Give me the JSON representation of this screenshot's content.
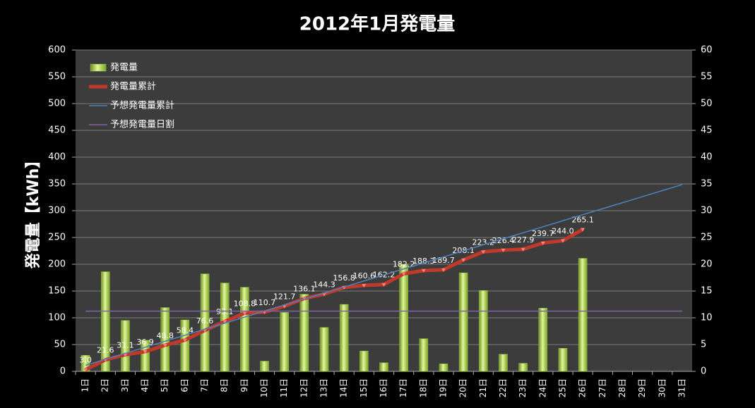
{
  "chart_data": {
    "type": "combo",
    "title": "2012年1月発電量",
    "y_label": "発電量【kWh】",
    "categories": [
      "1日",
      "2日",
      "3日",
      "4日",
      "5日",
      "6日",
      "7日",
      "8日",
      "9日",
      "10日",
      "11日",
      "12日",
      "13日",
      "14日",
      "15日",
      "16日",
      "17日",
      "18日",
      "19日",
      "20日",
      "21日",
      "22日",
      "23日",
      "24日",
      "25日",
      "26日",
      "27日",
      "28日",
      "29日",
      "30日",
      "31日"
    ],
    "series": [
      {
        "name": "発電量",
        "type": "bar",
        "axis": "y2",
        "color": "#9acd32",
        "values": [
          3.0,
          18.6,
          9.5,
          5.8,
          11.9,
          9.6,
          18.2,
          16.5,
          15.7,
          1.9,
          11.0,
          14.4,
          8.2,
          12.5,
          3.8,
          1.6,
          20.0,
          6.1,
          1.4,
          18.4,
          15.1,
          3.2,
          1.5,
          11.8,
          4.3,
          21.1,
          null,
          null,
          null,
          null,
          null
        ]
      },
      {
        "name": "発電量累計",
        "type": "line",
        "color": "#c0392b",
        "values": [
          3.0,
          21.6,
          31.1,
          36.9,
          48.8,
          58.4,
          76.6,
          93.1,
          108.8,
          110.7,
          121.7,
          136.1,
          144.3,
          156.8,
          160.6,
          162.2,
          182.2,
          188.3,
          189.7,
          208.1,
          223.2,
          226.4,
          227.9,
          239.7,
          244.0,
          265.1,
          null,
          null,
          null,
          null,
          null
        ],
        "value_labels": [
          "3.0",
          "21.6",
          "31.1",
          "36.9",
          "48.8",
          "58.4",
          "76.6",
          "93.1",
          "108.8",
          "110.7",
          "121.7",
          "136.1",
          "144.3",
          "156.8",
          "160.6",
          "162.2",
          "182.2",
          "188.3",
          "189.7",
          "208.1",
          "223.2",
          "226.4",
          "227.9",
          "239.7",
          "244.0",
          "265.1",
          null,
          null,
          null,
          null,
          null
        ]
      },
      {
        "name": "予想発電量累計",
        "type": "line",
        "color": "#4f81bd",
        "values": [
          11.25,
          22.5,
          33.75,
          45,
          56.25,
          67.5,
          78.75,
          90,
          101.25,
          112.5,
          123.75,
          135,
          146.25,
          157.5,
          168.75,
          180,
          191.25,
          202.5,
          213.75,
          225,
          236.25,
          247.5,
          258.75,
          270,
          281.25,
          292.5,
          303.75,
          315,
          326.25,
          337.5,
          348.75
        ]
      },
      {
        "name": "予想発電量日割",
        "type": "line",
        "axis": "y2",
        "color": "#8064a2",
        "values": [
          11.25,
          11.25,
          11.25,
          11.25,
          11.25,
          11.25,
          11.25,
          11.25,
          11.25,
          11.25,
          11.25,
          11.25,
          11.25,
          11.25,
          11.25,
          11.25,
          11.25,
          11.25,
          11.25,
          11.25,
          11.25,
          11.25,
          11.25,
          11.25,
          11.25,
          11.25,
          11.25,
          11.25,
          11.25,
          11.25,
          11.25
        ]
      }
    ],
    "ylim": [
      0,
      600
    ],
    "yticks": [
      0,
      50,
      100,
      150,
      200,
      250,
      300,
      350,
      400,
      450,
      500,
      550,
      600
    ],
    "y2lim": [
      0,
      60
    ],
    "y2ticks": [
      0,
      5,
      10,
      15,
      20,
      25,
      30,
      35,
      40,
      45,
      50,
      55,
      60
    ],
    "grid": true,
    "legend": "top-left"
  }
}
